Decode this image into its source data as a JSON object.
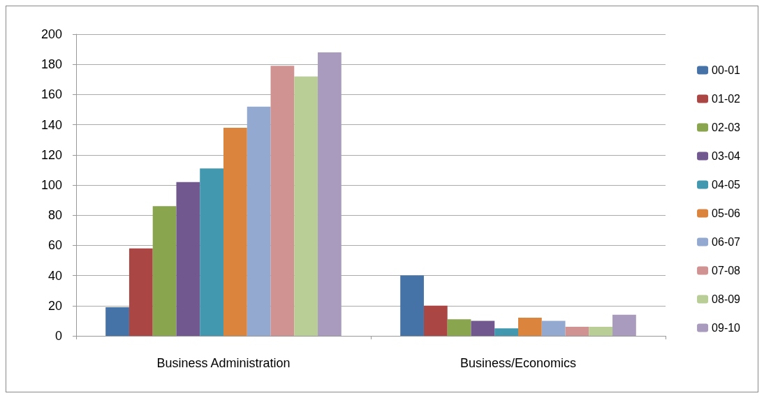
{
  "chart_data": {
    "type": "bar",
    "categories": [
      "Business Administration",
      "Business/Economics"
    ],
    "series": [
      {
        "name": "00-01",
        "color": "#4572a7",
        "values": [
          19,
          40
        ]
      },
      {
        "name": "01-02",
        "color": "#aa4643",
        "values": [
          58,
          20
        ]
      },
      {
        "name": "02-03",
        "color": "#89a54e",
        "values": [
          86,
          11
        ]
      },
      {
        "name": "03-04",
        "color": "#71588f",
        "values": [
          102,
          10
        ]
      },
      {
        "name": "04-05",
        "color": "#4198af",
        "values": [
          111,
          5
        ]
      },
      {
        "name": "05-06",
        "color": "#db843d",
        "values": [
          138,
          12
        ]
      },
      {
        "name": "06-07",
        "color": "#93a9cf",
        "values": [
          152,
          10
        ]
      },
      {
        "name": "07-08",
        "color": "#d19392",
        "values": [
          179,
          6
        ]
      },
      {
        "name": "08-09",
        "color": "#b9cd96",
        "values": [
          172,
          6
        ]
      },
      {
        "name": "09-10",
        "color": "#a99bbd",
        "values": [
          188,
          14
        ]
      }
    ],
    "ylim": [
      0,
      200
    ],
    "yticks": [
      0,
      20,
      40,
      60,
      80,
      100,
      120,
      140,
      160,
      180,
      200
    ],
    "grid": "y",
    "legend": "right"
  }
}
